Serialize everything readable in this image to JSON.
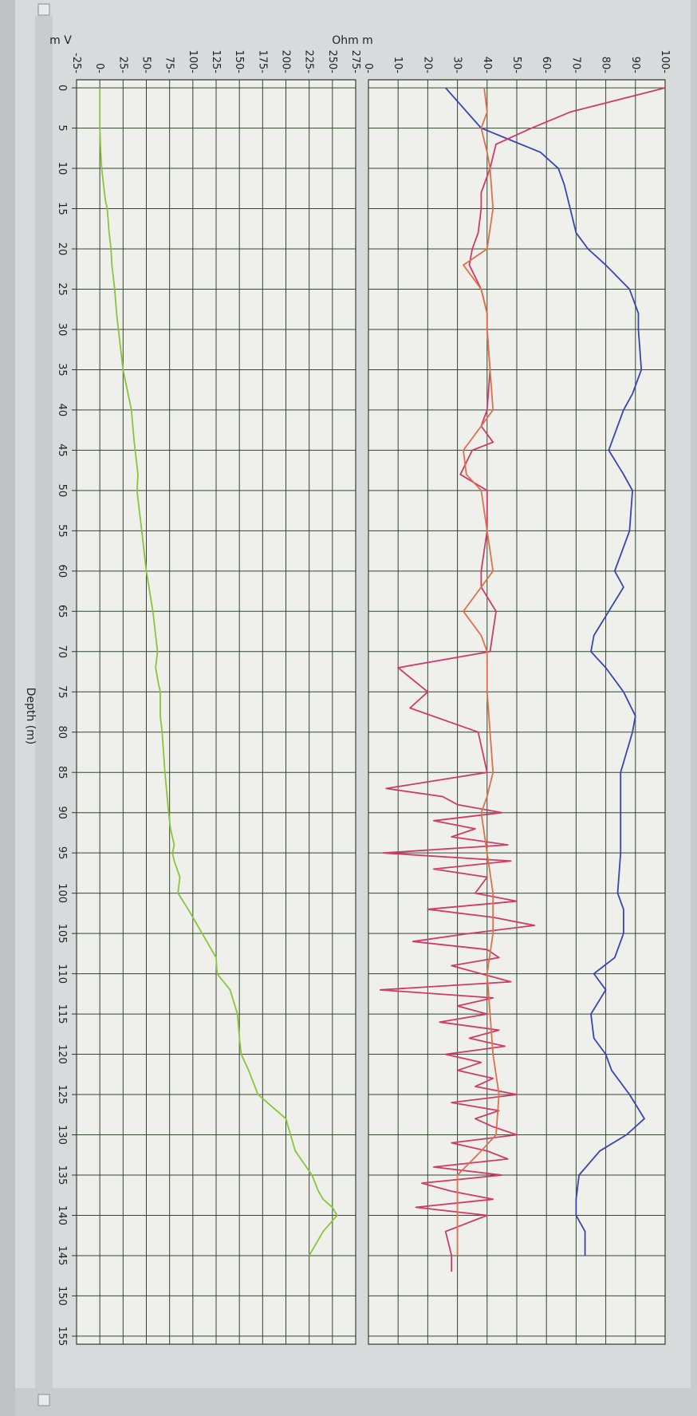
{
  "chart_data": [
    {
      "type": "line",
      "panel": "resistivity",
      "ylabel": "Ohm m",
      "ylim": [
        0,
        100
      ],
      "yticks": [
        0,
        10,
        20,
        30,
        40,
        50,
        60,
        70,
        80,
        90,
        100
      ],
      "grid": true,
      "series": [
        {
          "color": "#3a44b0",
          "x": [
            0,
            5,
            8,
            10,
            12,
            15,
            18,
            20,
            22,
            25,
            28,
            30,
            35,
            38,
            40,
            42,
            45,
            48,
            50,
            55,
            60,
            62,
            65,
            68,
            70,
            72,
            75,
            78,
            80,
            85,
            90,
            95,
            100,
            102,
            105,
            108,
            110,
            112,
            115,
            118,
            120,
            122,
            125,
            128,
            130,
            132,
            135,
            138,
            140,
            142,
            145
          ],
          "y": [
            26,
            38,
            58,
            64,
            66,
            68,
            70,
            74,
            80,
            88,
            91,
            91,
            92,
            89,
            86,
            84,
            81,
            86,
            89,
            88,
            83,
            86,
            81,
            76,
            75,
            80,
            86,
            90,
            89,
            85,
            85,
            85,
            84,
            86,
            86,
            83,
            76,
            80,
            75,
            76,
            80,
            82,
            88,
            93,
            87,
            78,
            71,
            70,
            70,
            73,
            73
          ]
        },
        {
          "color": "#cf3a6a",
          "x": [
            0,
            3,
            5,
            7,
            10,
            13,
            15,
            18,
            20,
            22,
            25,
            28,
            30,
            35,
            40,
            42,
            44,
            45,
            48,
            50,
            55,
            60,
            62,
            65,
            70,
            72,
            75,
            77,
            80,
            85,
            87,
            88,
            89,
            90,
            91,
            92,
            93,
            94,
            95,
            96,
            97,
            98,
            100,
            101,
            102,
            103,
            104,
            105,
            106,
            107,
            108,
            109,
            110,
            111,
            112,
            113,
            114,
            115,
            116,
            117,
            118,
            119,
            120,
            121,
            122,
            123,
            124,
            125,
            126,
            127,
            128,
            129,
            130,
            131,
            132,
            133,
            134,
            135,
            136,
            137,
            138,
            139,
            140,
            142,
            145,
            147
          ],
          "y": [
            100,
            68,
            55,
            43,
            41,
            38,
            38,
            37,
            35,
            34,
            38,
            40,
            40,
            41,
            40,
            38,
            42,
            35,
            31,
            40,
            40,
            38,
            38,
            43,
            41,
            10,
            20,
            14,
            37,
            40,
            6,
            25,
            30,
            45,
            22,
            36,
            28,
            47,
            5,
            48,
            22,
            40,
            36,
            50,
            20,
            42,
            56,
            34,
            15,
            40,
            44,
            28,
            38,
            48,
            4,
            42,
            30,
            40,
            24,
            44,
            34,
            46,
            26,
            38,
            30,
            42,
            36,
            50,
            28,
            44,
            36,
            42,
            50,
            28,
            40,
            47,
            22,
            45,
            18,
            28,
            42,
            16,
            40,
            26,
            28,
            28
          ]
        },
        {
          "color": "#e0704a",
          "x": [
            0,
            3,
            5,
            8,
            10,
            15,
            20,
            22,
            25,
            28,
            30,
            35,
            40,
            42,
            45,
            48,
            50,
            55,
            60,
            62,
            65,
            68,
            70,
            75,
            80,
            85,
            88,
            90,
            95,
            100,
            105,
            110,
            115,
            120,
            125,
            130,
            132,
            135,
            138,
            140,
            142,
            145
          ],
          "y": [
            39,
            40,
            38,
            40,
            41,
            42,
            40,
            32,
            38,
            40,
            40,
            41,
            42,
            38,
            32,
            33,
            38,
            40,
            42,
            38,
            32,
            38,
            40,
            40,
            41,
            42,
            40,
            38,
            40,
            42,
            42,
            40,
            41,
            42,
            44,
            43,
            38,
            30,
            30,
            30,
            30,
            30
          ]
        }
      ]
    },
    {
      "type": "line",
      "panel": "self-potential",
      "ylabel": "m V",
      "xlabel": "Depth (m)",
      "ylim": [
        -25,
        275
      ],
      "yticks": [
        -25,
        0,
        25,
        50,
        75,
        100,
        125,
        150,
        175,
        200,
        225,
        250,
        275
      ],
      "xticks": [
        0,
        5,
        10,
        15,
        20,
        25,
        30,
        35,
        40,
        45,
        50,
        55,
        60,
        65,
        70,
        75,
        80,
        85,
        90,
        95,
        100,
        105,
        110,
        115,
        120,
        125,
        130,
        135,
        140,
        145,
        150,
        155
      ],
      "grid": true,
      "series": [
        {
          "color": "#8bc43a",
          "x": [
            0,
            3,
            5,
            8,
            10,
            12,
            14,
            15,
            18,
            20,
            22,
            25,
            28,
            30,
            35,
            40,
            44,
            45,
            48,
            50,
            55,
            60,
            65,
            70,
            72,
            74,
            75,
            78,
            80,
            85,
            90,
            92,
            94,
            95,
            96,
            98,
            100,
            102,
            105,
            108,
            110,
            112,
            115,
            118,
            120,
            122,
            125,
            127,
            128,
            130,
            132,
            135,
            137,
            138,
            139,
            140,
            142,
            145
          ],
          "y": [
            0,
            0,
            0,
            1,
            2,
            4,
            6,
            8,
            10,
            12,
            13,
            16,
            18,
            20,
            25,
            34,
            37,
            38,
            41,
            40,
            45,
            50,
            57,
            62,
            60,
            63,
            65,
            65,
            67,
            70,
            74,
            76,
            80,
            78,
            80,
            86,
            84,
            95,
            110,
            125,
            126,
            140,
            148,
            150,
            152,
            160,
            170,
            190,
            200,
            205,
            210,
            228,
            235,
            240,
            250,
            255,
            240,
            225
          ]
        }
      ]
    }
  ]
}
